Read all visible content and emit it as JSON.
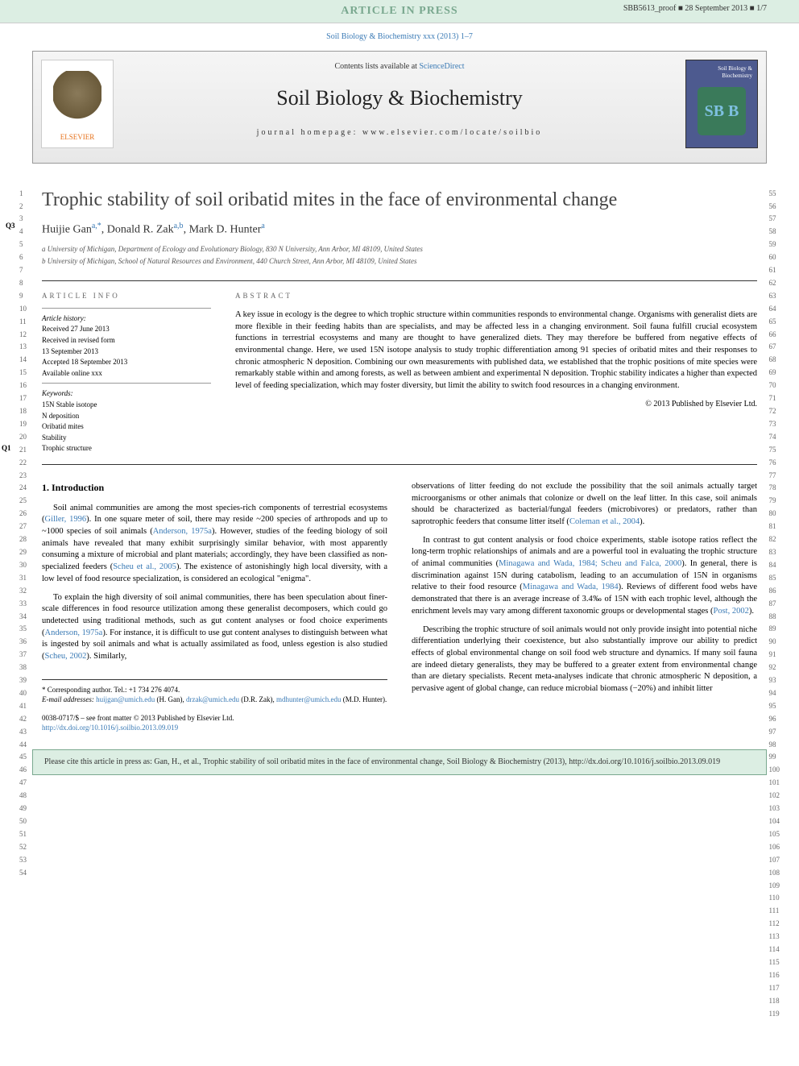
{
  "header": {
    "banner": "ARTICLE IN PRESS",
    "proof": "SBB5613_proof ■ 28 September 2013 ■ 1/7"
  },
  "journal_ref": "Soil Biology & Biochemistry xxx (2013) 1–7",
  "journal_box": {
    "contents_prefix": "Contents lists available at ",
    "contents_link": "ScienceDirect",
    "name": "Soil Biology & Biochemistry",
    "homepage": "journal homepage: www.elsevier.com/locate/soilbio",
    "publisher": "ELSEVIER",
    "cover_label": "Soil Biology & Biochemistry",
    "cover_logo": "SB B"
  },
  "title": "Trophic stability of soil oribatid mites in the face of environmental change",
  "q_markers": {
    "q3": "Q3",
    "q1": "Q1"
  },
  "authors_html": "Huijie Gan",
  "author_sup_a": "a,*",
  "author2": ", Donald R. Zak",
  "author_sup_b": "a,b",
  "author3": ", Mark D. Hunter",
  "author_sup_c": "a",
  "affiliations": {
    "a": "a University of Michigan, Department of Ecology and Evolutionary Biology, 830 N University, Ann Arbor, MI 48109, United States",
    "b": "b University of Michigan, School of Natural Resources and Environment, 440 Church Street, Ann Arbor, MI 48109, United States"
  },
  "article_info": {
    "heading": "ARTICLE INFO",
    "history_label": "Article history:",
    "history": [
      "Received 27 June 2013",
      "Received in revised form",
      "13 September 2013",
      "Accepted 18 September 2013",
      "Available online xxx"
    ],
    "keywords_label": "Keywords:",
    "keywords": [
      "15N Stable isotope",
      "N deposition",
      "Oribatid mites",
      "Stability",
      "Trophic structure"
    ]
  },
  "abstract": {
    "heading": "ABSTRACT",
    "text": "A key issue in ecology is the degree to which trophic structure within communities responds to environmental change. Organisms with generalist diets are more flexible in their feeding habits than are specialists, and may be affected less in a changing environment. Soil fauna fulfill crucial ecosystem functions in terrestrial ecosystems and many are thought to have generalized diets. They may therefore be buffered from negative effects of environmental change. Here, we used 15N isotope analysis to study trophic differentiation among 91 species of oribatid mites and their responses to chronic atmospheric N deposition. Combining our own measurements with published data, we established that the trophic positions of mite species were remarkably stable within and among forests, as well as between ambient and experimental N deposition. Trophic stability indicates a higher than expected level of feeding specialization, which may foster diversity, but limit the ability to switch food resources in a changing environment.",
    "copyright": "© 2013 Published by Elsevier Ltd."
  },
  "section1": {
    "heading": "1. Introduction",
    "p1a": "Soil animal communities are among the most species-rich components of terrestrial ecosystems (",
    "p1_ref1": "Giller, 1996",
    "p1b": "). In one square meter of soil, there may reside ~200 species of arthropods and up to ~1000 species of soil animals (",
    "p1_ref2": "Anderson, 1975a",
    "p1c": "). However, studies of the feeding biology of soil animals have revealed that many exhibit surprisingly similar behavior, with most apparently consuming a mixture of microbial and plant materials; accordingly, they have been classified as non-specialized feeders (",
    "p1_ref3": "Scheu et al., 2005",
    "p1d": "). The existence of astonishingly high local diversity, with a low level of food resource specialization, is considered an ecological \"enigma\".",
    "p2a": "To explain the high diversity of soil animal communities, there has been speculation about finer-scale differences in food resource utilization among these generalist decomposers, which could go undetected using traditional methods, such as gut content analyses or food choice experiments (",
    "p2_ref1": "Anderson, 1975a",
    "p2b": "). For instance, it is difficult to use gut content analyses to distinguish between what is ingested by soil animals and what is actually assimilated as food, unless egestion is also studied (",
    "p2_ref2": "Scheu, 2002",
    "p2c": "). Similarly,",
    "p3a": "observations of litter feeding do not exclude the possibility that the soil animals actually target microorganisms or other animals that colonize or dwell on the leaf litter. In this case, soil animals should be characterized as bacterial/fungal feeders (microbivores) or predators, rather than saprotrophic feeders that consume litter itself (",
    "p3_ref1": "Coleman et al., 2004",
    "p3b": ").",
    "p4a": "In contrast to gut content analysis or food choice experiments, stable isotope ratios reflect the long-term trophic relationships of animals and are a powerful tool in evaluating the trophic structure of animal communities (",
    "p4_ref1": "Minagawa and Wada, 1984; Scheu and Falca, 2000",
    "p4b": "). In general, there is discrimination against 15N during catabolism, leading to an accumulation of 15N in organisms relative to their food resource (",
    "p4_ref2": "Minagawa and Wada, 1984",
    "p4c": "). Reviews of different food webs have demonstrated that there is an average increase of 3.4‰ of 15N with each trophic level, although the enrichment levels may vary among different taxonomic groups or developmental stages (",
    "p4_ref3": "Post, 2002",
    "p4d": ").",
    "p5": "Describing the trophic structure of soil animals would not only provide insight into potential niche differentiation underlying their coexistence, but also substantially improve our ability to predict effects of global environmental change on soil food web structure and dynamics. If many soil fauna are indeed dietary generalists, they may be buffered to a greater extent from environmental change than are dietary specialists. Recent meta-analyses indicate that chronic atmospheric N deposition, a pervasive agent of global change, can reduce microbial biomass (−20%) and inhibit litter"
  },
  "footer": {
    "corresponding": "* Corresponding author. Tel.: +1 734 276 4074.",
    "emails_label": "E-mail addresses: ",
    "email1": "huijgan@umich.edu",
    "email1_who": " (H. Gan), ",
    "email2": "drzak@umich.edu",
    "email2_who": " (D.R. Zak), ",
    "email3": "mdhunter@umich.edu",
    "email3_who": " (M.D. Hunter).",
    "issn": "0038-0717/$ – see front matter © 2013 Published by Elsevier Ltd.",
    "doi": "http://dx.doi.org/10.1016/j.soilbio.2013.09.019"
  },
  "cite_box": "Please cite this article in press as: Gan, H., et al., Trophic stability of soil oribatid mites in the face of environmental change, Soil Biology & Biochemistry (2013), http://dx.doi.org/10.1016/j.soilbio.2013.09.019",
  "line_numbers": {
    "left_start": 1,
    "left_end": 54,
    "right_start": 55,
    "right_end": 119
  },
  "colors": {
    "link": "#3a7ab5",
    "banner_bg": "#dceee3",
    "banner_text": "#7aa88f",
    "elsevier_orange": "#e6711b",
    "cover_bg": "#4d5a8f"
  },
  "typography": {
    "body_font": "Georgia, Times New Roman, serif",
    "title_size_pt": 18,
    "journal_name_size_pt": 20,
    "body_size_pt": 8,
    "abstract_size_pt": 8
  }
}
